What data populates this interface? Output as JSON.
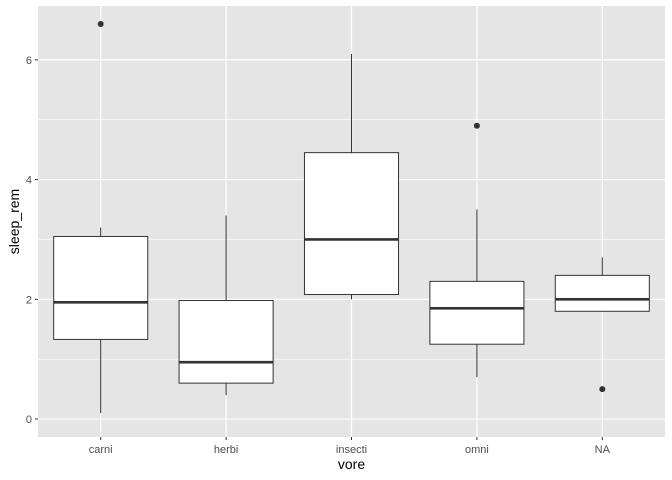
{
  "chart_data": {
    "type": "boxplot",
    "xlabel": "vore",
    "ylabel": "sleep_rem",
    "categories": [
      "carni",
      "herbi",
      "insecti",
      "omni",
      "NA"
    ],
    "ylim": [
      -0.3,
      6.9
    ],
    "y_ticks": [
      0,
      2,
      4,
      6
    ],
    "grid": true,
    "colors": {
      "panel_bg": "#e5e5e5",
      "grid_major": "#ffffff",
      "box_fill": "#ffffff",
      "box_stroke": "#333333",
      "median": "#333333",
      "outlier": "#333333"
    },
    "boxes": [
      {
        "category": "carni",
        "whisker_low": 0.1,
        "q1": 1.33,
        "median": 1.95,
        "q3": 3.05,
        "whisker_high": 3.2,
        "outliers": [
          6.6
        ]
      },
      {
        "category": "herbi",
        "whisker_low": 0.4,
        "q1": 0.6,
        "median": 0.95,
        "q3": 1.98,
        "whisker_high": 3.4,
        "outliers": []
      },
      {
        "category": "insecti",
        "whisker_low": 2.0,
        "q1": 2.08,
        "median": 3.0,
        "q3": 4.45,
        "whisker_high": 6.1,
        "outliers": []
      },
      {
        "category": "omni",
        "whisker_low": 0.7,
        "q1": 1.25,
        "median": 1.85,
        "q3": 2.3,
        "whisker_high": 3.5,
        "outliers": [
          4.9
        ]
      },
      {
        "category": "NA",
        "whisker_low": 1.8,
        "q1": 1.8,
        "median": 2.0,
        "q3": 2.4,
        "whisker_high": 2.7,
        "outliers": [
          0.5
        ]
      }
    ]
  }
}
